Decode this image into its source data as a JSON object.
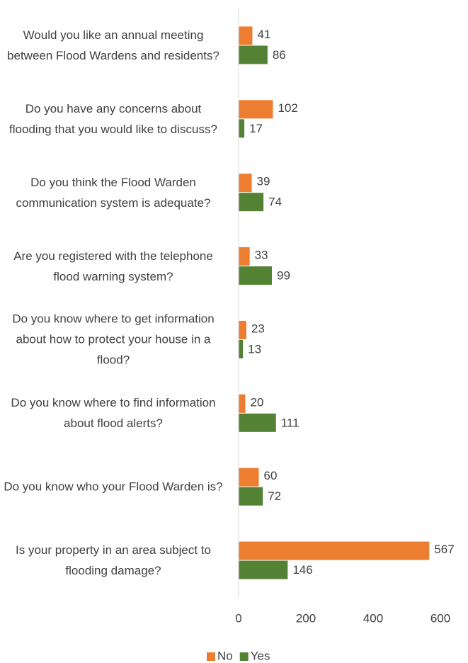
{
  "chart_data": {
    "type": "bar",
    "orientation": "horizontal",
    "categories": [
      "Would you like an annual meeting between Flood Wardens and residents?",
      "Do you have any concerns about flooding that you would like to discuss?",
      "Do you think the Flood Warden communication system is adequate?",
      "Are you registered with the telephone flood warning system?",
      "Do you know where to get information about how to protect your house in a flood?",
      "Do you know where to find information about flood alerts?",
      "Do you know who your Flood Warden is?",
      "Is your property in an area subject to flooding damage?"
    ],
    "series": [
      {
        "name": "No",
        "color": "#ed7d31",
        "values": [
          41,
          102,
          39,
          33,
          23,
          20,
          60,
          567
        ]
      },
      {
        "name": "Yes",
        "color": "#548235",
        "values": [
          86,
          17,
          74,
          99,
          13,
          111,
          72,
          146
        ]
      }
    ],
    "xlim": [
      0,
      600
    ],
    "xticks": [
      0,
      200,
      400,
      600
    ],
    "legend": "bottom"
  }
}
